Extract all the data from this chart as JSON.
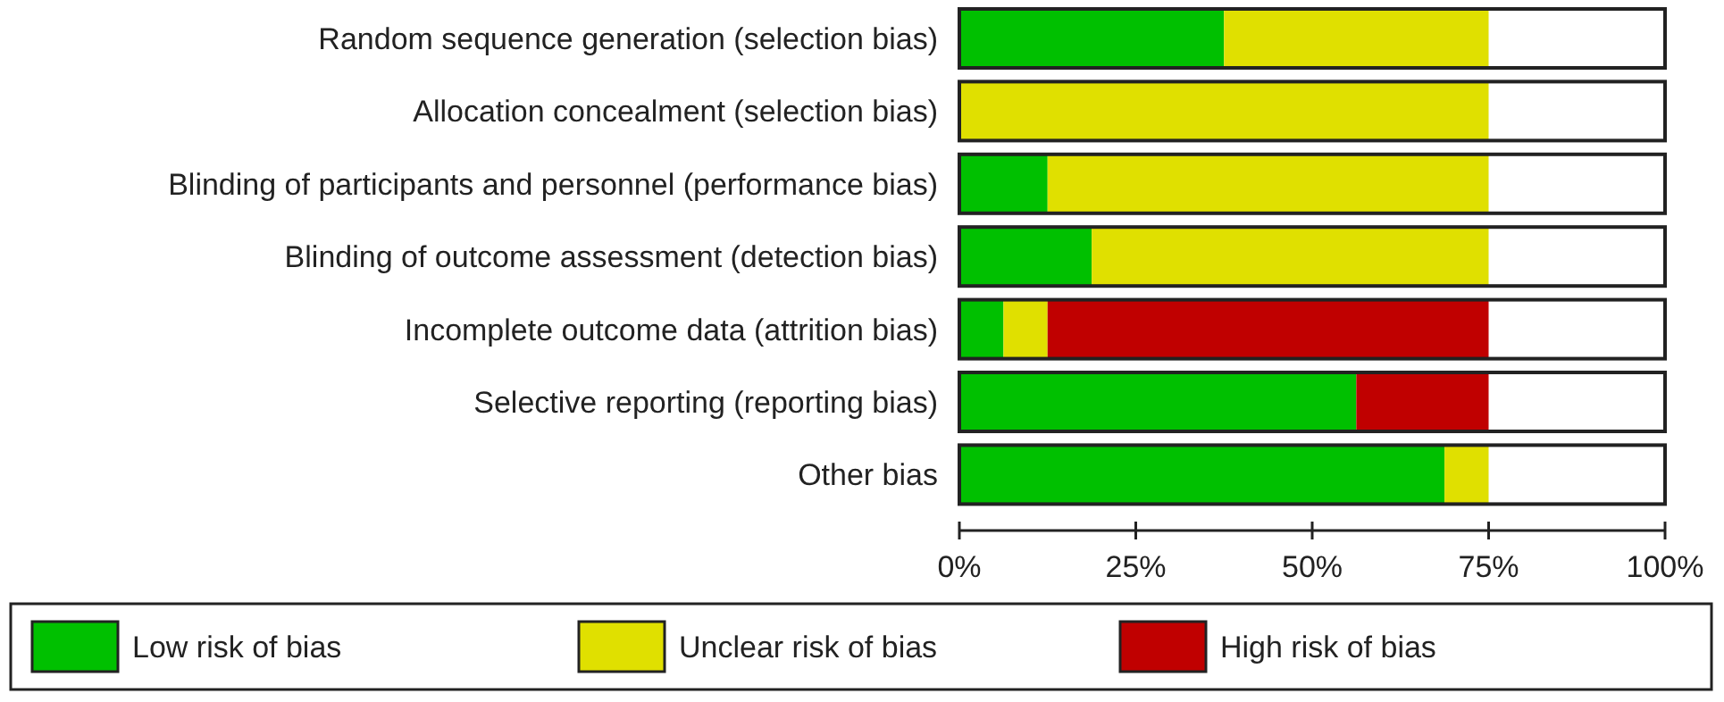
{
  "chart_data": {
    "type": "bar",
    "orientation": "horizontal",
    "stacked": true,
    "categories": [
      "Random sequence generation (selection bias)",
      "Allocation concealment (selection bias)",
      "Blinding of participants and personnel (performance bias)",
      "Blinding of outcome assessment (detection bias)",
      "Incomplete outcome data (attrition bias)",
      "Selective reporting (reporting bias)",
      "Other bias"
    ],
    "series": [
      {
        "name": "Low risk of bias",
        "color": "#00c000",
        "values": [
          37.5,
          0,
          12.5,
          18.75,
          6.25,
          56.25,
          68.75
        ]
      },
      {
        "name": "Unclear risk of bias",
        "color": "#e0e000",
        "values": [
          37.5,
          75,
          62.5,
          56.25,
          6.25,
          0,
          6.25
        ]
      },
      {
        "name": "High risk of bias",
        "color": "#c00000",
        "values": [
          0,
          0,
          0,
          0,
          62.5,
          18.75,
          0
        ]
      }
    ],
    "xlim": [
      0,
      100
    ],
    "xticks": [
      {
        "value": 0,
        "label": "0%"
      },
      {
        "value": 25,
        "label": "25%"
      },
      {
        "value": 50,
        "label": "50%"
      },
      {
        "value": 75,
        "label": "75%"
      },
      {
        "value": 100,
        "label": "100%"
      }
    ],
    "legend": "bottom",
    "grid": false
  }
}
